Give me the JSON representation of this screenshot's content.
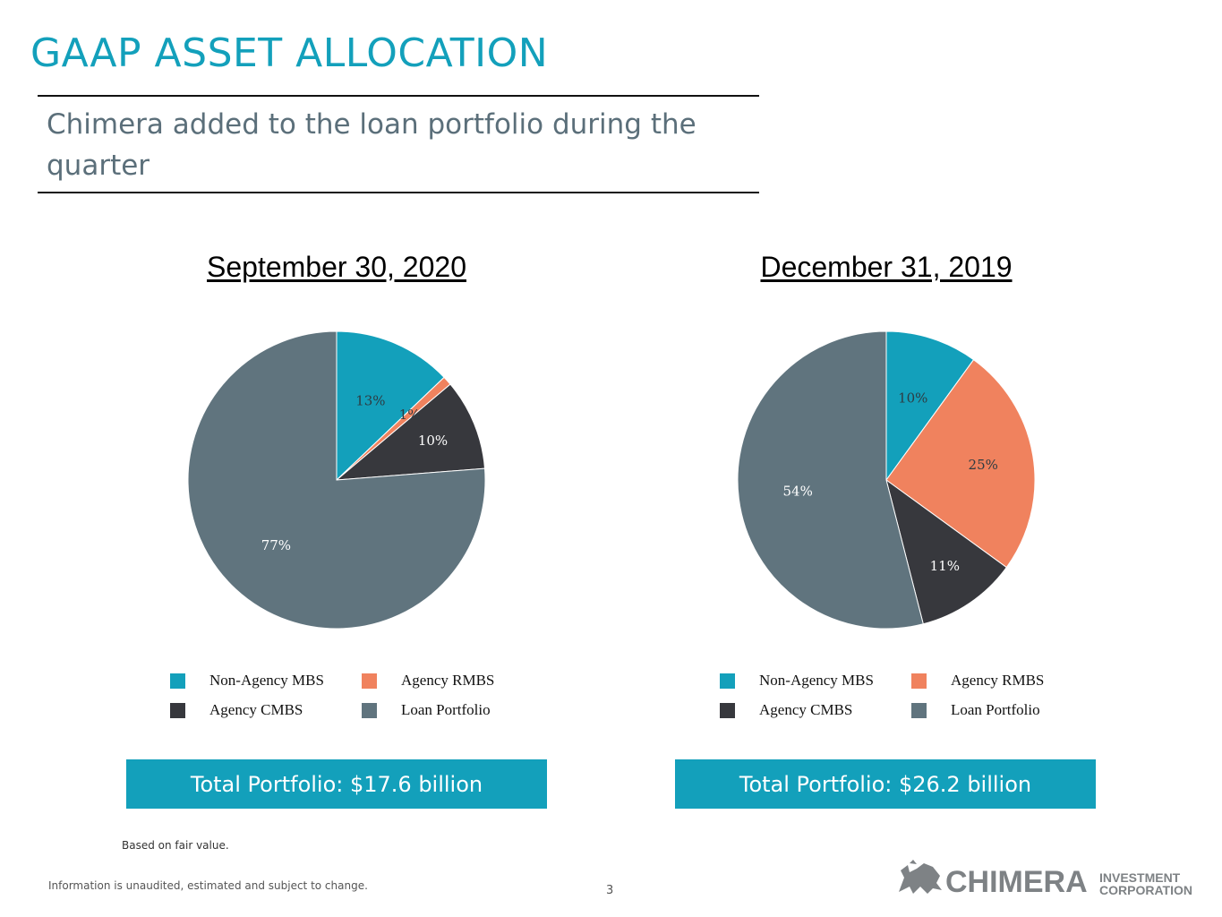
{
  "header": {
    "title": "GAAP ASSET ALLOCATION",
    "subtitle": "Chimera added to the loan portfolio during the quarter"
  },
  "colors": {
    "non_agency_mbs": "#13A0BB",
    "agency_rmbs": "#F0825E",
    "agency_cmbs": "#37383D",
    "loan_portfolio": "#60747E",
    "accent": "#13A0BB"
  },
  "chart_data": [
    {
      "type": "pie",
      "title": "September 30, 2020",
      "categories": [
        "Non-Agency MBS",
        "Agency RMBS",
        "Agency CMBS",
        "Loan Portfolio"
      ],
      "values": [
        13,
        1,
        10,
        77
      ],
      "labels": [
        "13%",
        "1%",
        "10%",
        "77%"
      ],
      "legend_placement": "bottom",
      "total": "Total Portfolio: $17.6 billion"
    },
    {
      "type": "pie",
      "title": "December 31, 2019",
      "categories": [
        "Non-Agency MBS",
        "Agency RMBS",
        "Agency CMBS",
        "Loan Portfolio"
      ],
      "values": [
        10,
        25,
        11,
        54
      ],
      "labels": [
        "10%",
        "25%",
        "11%",
        "54%"
      ],
      "legend_placement": "bottom",
      "total": "Total Portfolio: $26.2 billion"
    }
  ],
  "footer": {
    "note": "Based on fair value.",
    "disclaimer": "Information is unaudited, estimated and subject to change.",
    "page_number": "3"
  },
  "logo": {
    "icon": "chimera-creature-icon",
    "name": "CHIMERA",
    "line1": "INVESTMENT",
    "line2": "CORPORATION"
  }
}
